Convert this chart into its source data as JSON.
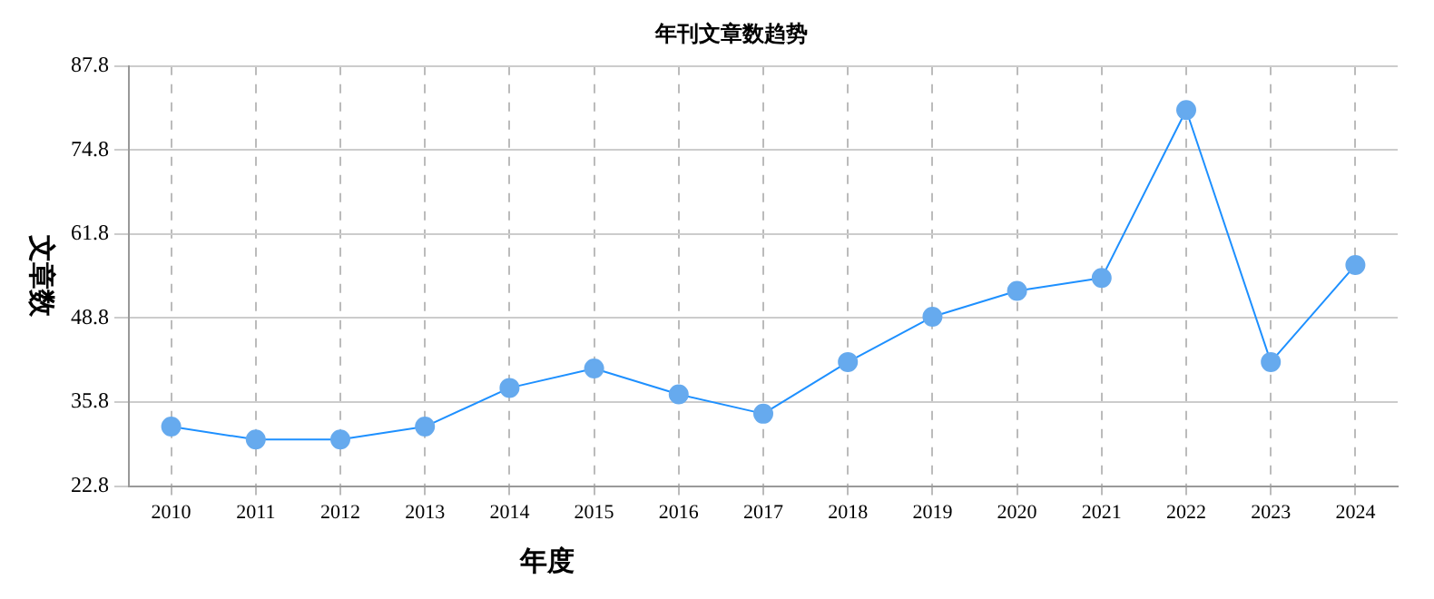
{
  "chart_data": {
    "type": "line",
    "title": "年刊文章数趋势",
    "xlabel": "年度",
    "ylabel": "文章数",
    "categories": [
      "2010",
      "2011",
      "2012",
      "2013",
      "2014",
      "2015",
      "2016",
      "2017",
      "2018",
      "2019",
      "2020",
      "2021",
      "2022",
      "2023",
      "2024"
    ],
    "series": [
      {
        "color": "#1e90ff",
        "values": [
          32,
          30,
          30,
          32,
          38,
          41,
          37,
          34,
          42,
          49,
          53,
          55,
          81,
          42,
          57
        ]
      }
    ],
    "ylim": [
      22.8,
      87.8
    ],
    "yticks": [
      22.8,
      35.8,
      48.8,
      61.8,
      74.8,
      87.8
    ],
    "grid": true,
    "marker": "circle",
    "line_style": "solid",
    "legend": false
  }
}
